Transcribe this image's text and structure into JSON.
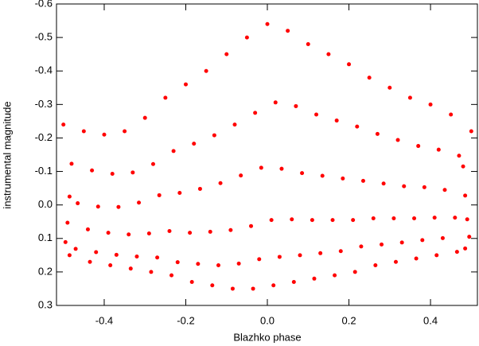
{
  "chart_data": {
    "type": "scatter",
    "x_label": "Blazhko phase",
    "y_label": "instrumental magnitude",
    "xlim": [
      -0.517,
      0.515
    ],
    "ylim": [
      0.3,
      -0.6
    ],
    "xticks": [
      -0.4,
      -0.2,
      {
        "value": 0,
        "label": "0.0"
      },
      0.2,
      0.4
    ],
    "yticks": [
      -0.6,
      -0.5,
      -0.4,
      -0.3,
      -0.2,
      -0.1,
      {
        "value": 0,
        "label": "0.0"
      },
      0.1,
      0.2,
      0.3
    ],
    "color": "#ff0000",
    "x": [
      -0.5,
      -0.48,
      -0.485,
      -0.49,
      -0.495,
      -0.485,
      -0.45,
      -0.43,
      -0.465,
      -0.44,
      -0.47,
      -0.435,
      -0.4,
      -0.38,
      -0.415,
      -0.39,
      -0.42,
      -0.385,
      -0.35,
      -0.33,
      -0.365,
      -0.34,
      -0.37,
      -0.335,
      -0.3,
      -0.28,
      -0.315,
      -0.29,
      -0.32,
      -0.285,
      -0.25,
      -0.23,
      -0.265,
      -0.24,
      -0.27,
      -0.235,
      -0.2,
      -0.18,
      -0.215,
      -0.19,
      -0.22,
      -0.185,
      -0.15,
      -0.13,
      -0.165,
      -0.14,
      -0.17,
      -0.135,
      -0.1,
      -0.08,
      -0.115,
      -0.09,
      -0.12,
      -0.085,
      -0.05,
      -0.03,
      -0.065,
      -0.04,
      -0.07,
      -0.035,
      0,
      0.02,
      -0.015,
      0.01,
      -0.02,
      0.015,
      0.05,
      0.07,
      0.035,
      0.06,
      0.03,
      0.065,
      0.1,
      0.12,
      0.085,
      0.11,
      0.08,
      0.115,
      0.15,
      0.17,
      0.135,
      0.16,
      0.13,
      0.165,
      0.2,
      0.22,
      0.185,
      0.21,
      0.18,
      0.215,
      0.25,
      0.27,
      0.235,
      0.26,
      0.23,
      0.265,
      0.3,
      0.32,
      0.285,
      0.31,
      0.28,
      0.315,
      0.35,
      0.37,
      0.335,
      0.36,
      0.33,
      0.365,
      0.4,
      0.42,
      0.385,
      0.41,
      0.38,
      0.415,
      0.45,
      0.47,
      0.435,
      0.46,
      0.43,
      0.465,
      0.5,
      0.48,
      0.485,
      0.49,
      0.495,
      0.485
    ],
    "values": [
      -0.24,
      -0.123,
      -0.025,
      0.053,
      0.111,
      0.15,
      -0.22,
      -0.103,
      -0.005,
      0.073,
      0.131,
      0.17,
      -0.21,
      -0.093,
      0.005,
      0.083,
      0.141,
      0.18,
      -0.22,
      -0.097,
      0.006,
      0.088,
      0.149,
      0.19,
      -0.26,
      -0.122,
      -0.007,
      0.085,
      0.154,
      0.2,
      -0.32,
      -0.161,
      -0.029,
      0.078,
      0.157,
      0.21,
      -0.36,
      -0.183,
      -0.036,
      0.083,
      0.171,
      0.23,
      -0.4,
      -0.208,
      -0.048,
      0.08,
      0.176,
      0.24,
      -0.45,
      -0.24,
      -0.065,
      0.075,
      0.18,
      0.25,
      -0.5,
      -0.275,
      -0.088,
      0.063,
      0.175,
      0.25,
      -0.54,
      -0.306,
      -0.111,
      0.045,
      0.162,
      0.24,
      -0.52,
      -0.295,
      -0.108,
      0.043,
      0.155,
      0.23,
      -0.48,
      -0.27,
      -0.095,
      0.045,
      0.15,
      0.22,
      -0.45,
      -0.252,
      -0.087,
      0.045,
      0.144,
      0.21,
      -0.42,
      -0.234,
      -0.079,
      0.045,
      0.138,
      0.2,
      -0.38,
      -0.212,
      -0.072,
      0.04,
      0.124,
      0.18,
      -0.35,
      -0.194,
      -0.064,
      0.04,
      0.118,
      0.17,
      -0.32,
      -0.176,
      -0.056,
      0.04,
      0.112,
      0.16,
      -0.3,
      -0.165,
      -0.053,
      0.038,
      0.105,
      0.15,
      -0.27,
      -0.147,
      -0.045,
      0.038,
      0.099,
      0.14,
      -0.22,
      -0.115,
      -0.028,
      0.043,
      0.095,
      0.13
    ]
  }
}
